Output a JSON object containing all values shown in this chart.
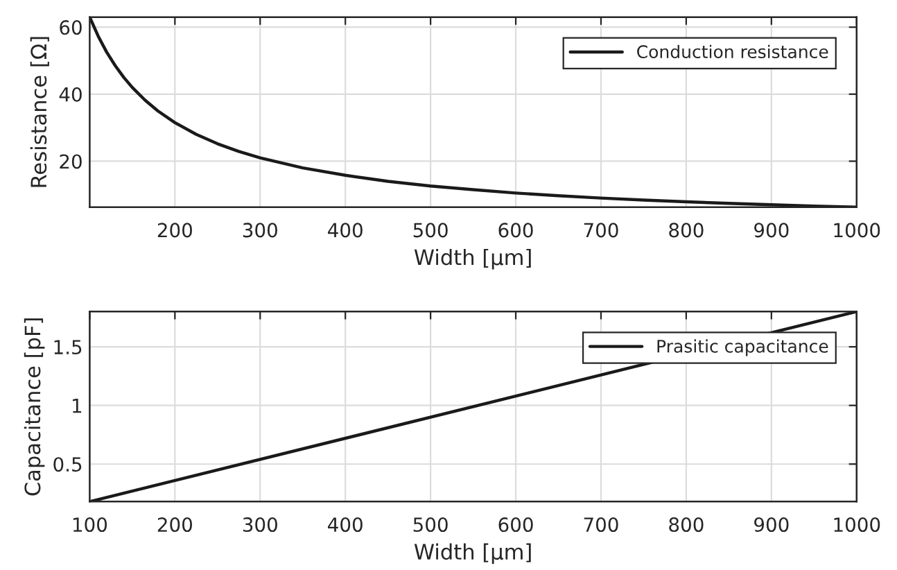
{
  "chart_data": [
    {
      "type": "line",
      "xlabel": "Width [μm]",
      "ylabel": "Resistance [Ω]",
      "xlim": [
        100,
        1000
      ],
      "xticks": [
        200,
        300,
        400,
        500,
        600,
        700,
        800,
        900,
        1000
      ],
      "ylim": [
        6.3,
        63
      ],
      "yticks": [
        20,
        40,
        60
      ],
      "grid": true,
      "legend": "top right",
      "series": [
        {
          "name": "Conduction resistance",
          "color": "#1a1a1a",
          "x": [
            100,
            110,
            120,
            130,
            140,
            150,
            165,
            180,
            200,
            225,
            250,
            275,
            300,
            350,
            400,
            450,
            500,
            550,
            600,
            650,
            700,
            750,
            800,
            850,
            900,
            950,
            1000
          ],
          "values": [
            63,
            57.3,
            52.5,
            48.5,
            45,
            42,
            38.2,
            35,
            31.5,
            28,
            25.2,
            22.9,
            21,
            18,
            15.8,
            14,
            12.6,
            11.5,
            10.5,
            9.7,
            9,
            8.4,
            7.9,
            7.4,
            7,
            6.6,
            6.3
          ]
        }
      ]
    },
    {
      "type": "line",
      "xlabel": "Width [μm]",
      "ylabel": "Capacitance [pF]",
      "xlim": [
        100,
        1000
      ],
      "xticks": [
        100,
        200,
        300,
        400,
        500,
        600,
        700,
        800,
        900,
        1000
      ],
      "ylim": [
        0.18,
        1.8
      ],
      "yticks": [
        0.5,
        1,
        1.5
      ],
      "grid": true,
      "legend": "top right",
      "series": [
        {
          "name": "Prasitic capacitance",
          "color": "#1a1a1a",
          "x": [
            100,
            1000
          ],
          "values": [
            0.18,
            1.8
          ]
        }
      ]
    }
  ]
}
